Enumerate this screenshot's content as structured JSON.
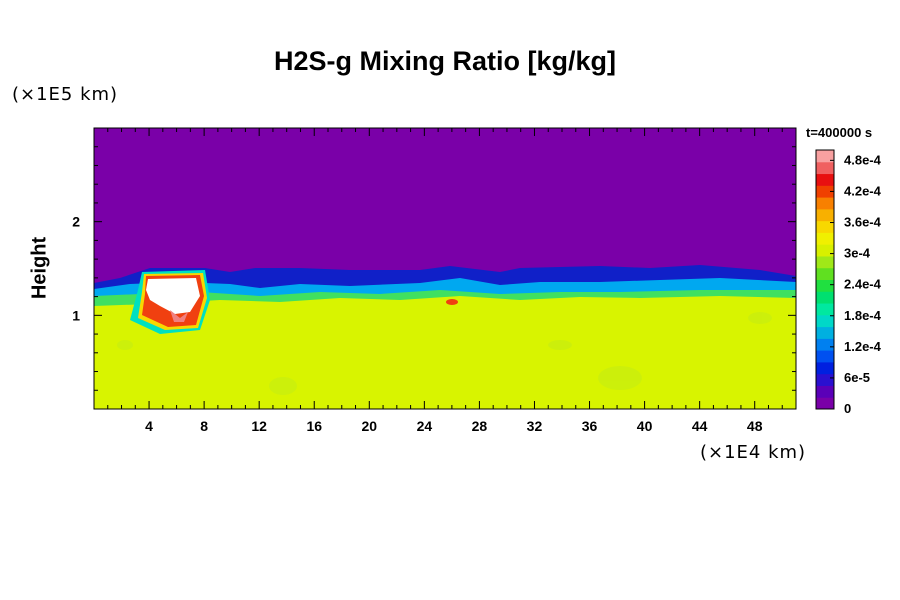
{
  "chart_data": {
    "type": "heatmap",
    "title": "H2S-g Mixing Ratio [kg/kg]",
    "ylabel": "Height",
    "y_unit": "(×1E5 km)",
    "x_unit": "(×1E4 km)",
    "time_label": "t=400000 s",
    "xlim": [
      0,
      51
    ],
    "ylim": [
      0,
      3
    ],
    "x_ticks": [
      4,
      8,
      12,
      16,
      20,
      24,
      28,
      32,
      36,
      40,
      44,
      48
    ],
    "y_ticks": [
      1,
      2
    ],
    "colorbar": {
      "min": 0,
      "max": 0.0005,
      "labels": [
        "0",
        "6e-5",
        "1.2e-4",
        "1.8e-4",
        "2.4e-4",
        "3e-4",
        "3.6e-4",
        "4.2e-4",
        "4.8e-4"
      ],
      "colors": [
        "#7a00a8",
        "#5a00b8",
        "#2a10d0",
        "#0020e0",
        "#0050f0",
        "#0080f0",
        "#00b0e0",
        "#00d8c8",
        "#00e8a0",
        "#00e070",
        "#20e040",
        "#60e020",
        "#a0e818",
        "#d8f000",
        "#f0f000",
        "#f8d800",
        "#f8b000",
        "#f88000",
        "#f04000",
        "#e81010",
        "#f06060",
        "#f8a0a0"
      ]
    },
    "fields": {
      "upper_region_value": 0,
      "lower_region_value": 0.00034,
      "interface_height": 1.3,
      "peak_value": 0.0005,
      "peak_location_x": [
        3.5,
        8.5
      ]
    }
  },
  "colors": {
    "low": "#7a00a8",
    "mid": "#d8f400",
    "high": "#ffffff"
  }
}
